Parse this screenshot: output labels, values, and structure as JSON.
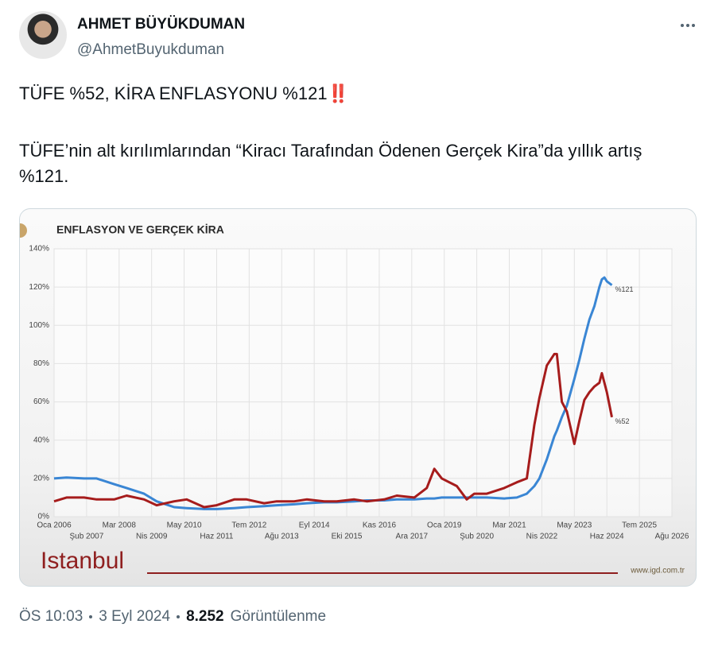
{
  "tweet": {
    "name": "AHMET BÜYÜKDUMAN",
    "handle": "@AhmetBuyukduman",
    "text": [
      "TÜFE %52, KİRA ENFLASYONU %121‼️",
      "TÜFE’nin alt kırılımlarından “Kiracı Tarafından Ödenen Gerçek Kira”da yıllık artış %121."
    ],
    "footer": {
      "time": "ÖS 10:03",
      "date": "3 Eyl 2024",
      "views": "8.252",
      "views_label": "Görüntülenme"
    }
  },
  "chart_data": {
    "type": "line",
    "title": "ENFLASYON VE GERÇEK KİRA",
    "logo": "Istanbul",
    "source": "www.igd.com.tr",
    "x": [
      "2006-01",
      "2006-06",
      "2007-01",
      "2007-06",
      "2008-01",
      "2008-06",
      "2009-01",
      "2009-06",
      "2010-01",
      "2010-06",
      "2011-01",
      "2011-06",
      "2012-01",
      "2012-06",
      "2013-01",
      "2013-06",
      "2014-01",
      "2014-06",
      "2015-01",
      "2015-06",
      "2016-01",
      "2016-06",
      "2017-01",
      "2017-06",
      "2018-01",
      "2018-06",
      "2018-09",
      "2018-12",
      "2019-06",
      "2019-10",
      "2020-01",
      "2020-06",
      "2021-01",
      "2021-06",
      "2021-10",
      "2022-01",
      "2022-03",
      "2022-06",
      "2022-09",
      "2022-10",
      "2022-12",
      "2023-02",
      "2023-05",
      "2023-07",
      "2023-09",
      "2023-11",
      "2024-01",
      "2024-03",
      "2024-04",
      "2024-05",
      "2024-06",
      "2024-08"
    ],
    "series": [
      {
        "name": "%121",
        "color": "#3a86d4",
        "values": [
          20,
          20.5,
          20,
          20,
          17,
          15,
          12,
          8,
          5,
          4.5,
          4,
          4,
          4.5,
          5,
          5.5,
          6,
          6.5,
          7,
          7.5,
          7.5,
          8,
          8.5,
          8.5,
          9,
          9,
          9.5,
          9.5,
          10,
          10,
          10,
          10,
          10,
          9.5,
          10,
          12,
          16,
          20,
          30,
          42,
          45,
          52,
          58,
          72,
          82,
          93,
          103,
          110,
          120,
          124,
          125,
          123,
          121
        ]
      },
      {
        "name": "%52",
        "color": "#a61c1c",
        "values": [
          8,
          10,
          10,
          9,
          9,
          11,
          9,
          6,
          8,
          9,
          5,
          6,
          9,
          9,
          7,
          8,
          8,
          9,
          8,
          8,
          9,
          8,
          9,
          11,
          10,
          15,
          25,
          20,
          16,
          9,
          12,
          12,
          15,
          18,
          20,
          48,
          62,
          79,
          85,
          85,
          60,
          55,
          38,
          50,
          61,
          65,
          68,
          70,
          75,
          70,
          65,
          52
        ]
      }
    ],
    "xlim": [
      "2006-01",
      "2026-08"
    ],
    "xticks": [
      {
        "value": "2006-01",
        "label": "Oca 2006"
      },
      {
        "value": "2007-02",
        "label": "Şub 2007"
      },
      {
        "value": "2008-03",
        "label": "Mar 2008"
      },
      {
        "value": "2009-04",
        "label": "Nis 2009"
      },
      {
        "value": "2010-05",
        "label": "May 2010"
      },
      {
        "value": "2011-06",
        "label": "Haz 2011"
      },
      {
        "value": "2012-07",
        "label": "Tem 2012"
      },
      {
        "value": "2013-08",
        "label": "Ağu 2013"
      },
      {
        "value": "2014-09",
        "label": "Eyl 2014"
      },
      {
        "value": "2015-10",
        "label": "Eki 2015"
      },
      {
        "value": "2016-11",
        "label": "Kas 2016"
      },
      {
        "value": "2017-12",
        "label": "Ara 2017"
      },
      {
        "value": "2019-01",
        "label": "Oca 2019"
      },
      {
        "value": "2020-02",
        "label": "Şub 2020"
      },
      {
        "value": "2021-03",
        "label": "Mar 2021"
      },
      {
        "value": "2022-04",
        "label": "Nis 2022"
      },
      {
        "value": "2023-05",
        "label": "May 2023"
      },
      {
        "value": "2024-06",
        "label": "Haz 2024"
      },
      {
        "value": "2025-07",
        "label": "Tem 2025"
      },
      {
        "value": "2026-08",
        "label": "Ağu 2026"
      }
    ],
    "ylim": [
      0,
      140
    ],
    "yticks": [
      {
        "value": 0,
        "label": "0%"
      },
      {
        "value": 20,
        "label": "20%"
      },
      {
        "value": 40,
        "label": "40%"
      },
      {
        "value": 60,
        "label": "60%"
      },
      {
        "value": 80,
        "label": "80%"
      },
      {
        "value": 100,
        "label": "100%"
      },
      {
        "value": 120,
        "label": "120%"
      },
      {
        "value": 140,
        "label": "140%"
      }
    ],
    "grid": true
  }
}
